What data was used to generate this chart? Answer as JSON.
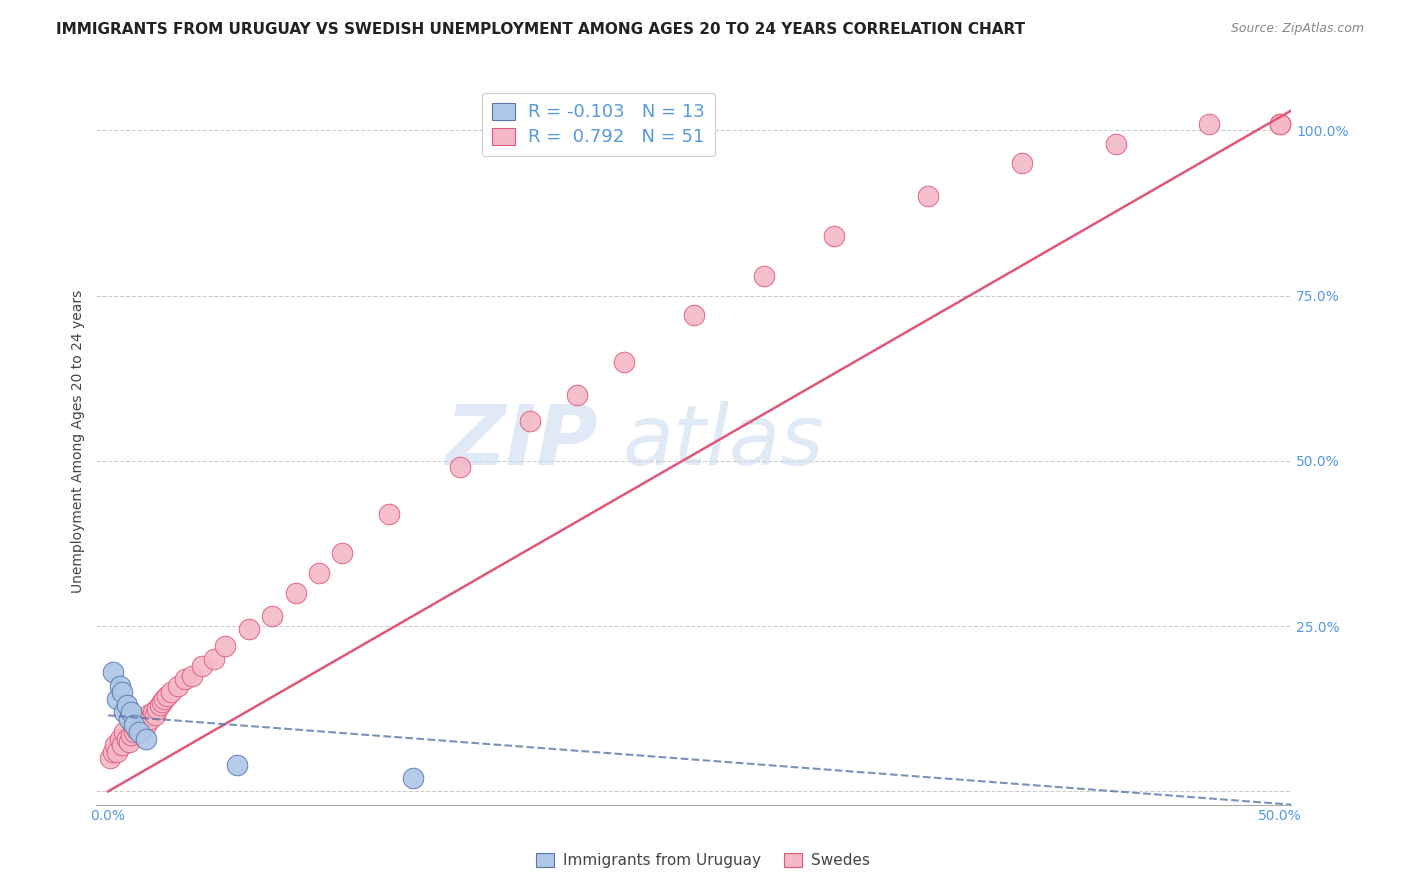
{
  "title": "IMMIGRANTS FROM URUGUAY VS SWEDISH UNEMPLOYMENT AMONG AGES 20 TO 24 YEARS CORRELATION CHART",
  "source": "Source: ZipAtlas.com",
  "ylabel": "Unemployment Among Ages 20 to 24 years",
  "xlim": [
    -0.005,
    0.505
  ],
  "ylim": [
    -0.02,
    1.08
  ],
  "xticks": [
    0.0,
    0.1,
    0.2,
    0.3,
    0.4,
    0.5
  ],
  "xtick_labels": [
    "0.0%",
    "",
    "",
    "",
    "",
    "50.0%"
  ],
  "yticks": [
    0.0,
    0.25,
    0.5,
    0.75,
    1.0
  ],
  "ytick_labels": [
    "",
    "25.0%",
    "50.0%",
    "75.0%",
    "100.0%"
  ],
  "blue_color": "#aec6e8",
  "pink_color": "#f5b8c8",
  "line_pink_color": "#e05878",
  "line_blue_color": "#5577aa",
  "legend_R_blue": "-0.103",
  "legend_N_blue": "13",
  "legend_R_pink": "0.792",
  "legend_N_pink": "51",
  "legend_label_blue": "Immigrants from Uruguay",
  "legend_label_pink": "Swedes",
  "watermark_zip": "ZIP",
  "watermark_atlas": "atlas",
  "title_fontsize": 11,
  "axis_label_fontsize": 10,
  "tick_fontsize": 10,
  "background_color": "#ffffff",
  "grid_color": "#cccccc",
  "blue_x": [
    0.002,
    0.004,
    0.005,
    0.006,
    0.007,
    0.008,
    0.009,
    0.01,
    0.011,
    0.013,
    0.016,
    0.055,
    0.13
  ],
  "blue_y": [
    0.18,
    0.14,
    0.16,
    0.15,
    0.12,
    0.13,
    0.11,
    0.12,
    0.1,
    0.09,
    0.08,
    0.04,
    0.02
  ],
  "pink_x": [
    0.001,
    0.002,
    0.003,
    0.004,
    0.005,
    0.006,
    0.007,
    0.008,
    0.009,
    0.01,
    0.011,
    0.012,
    0.013,
    0.014,
    0.015,
    0.016,
    0.017,
    0.018,
    0.019,
    0.02,
    0.021,
    0.022,
    0.023,
    0.024,
    0.025,
    0.027,
    0.03,
    0.033,
    0.036,
    0.04,
    0.045,
    0.05,
    0.06,
    0.07,
    0.08,
    0.09,
    0.1,
    0.12,
    0.15,
    0.18,
    0.2,
    0.22,
    0.25,
    0.28,
    0.31,
    0.35,
    0.39,
    0.43,
    0.47,
    0.5,
    0.5
  ],
  "pink_y": [
    0.05,
    0.06,
    0.07,
    0.06,
    0.08,
    0.07,
    0.09,
    0.08,
    0.075,
    0.085,
    0.09,
    0.095,
    0.1,
    0.09,
    0.105,
    0.1,
    0.115,
    0.11,
    0.12,
    0.115,
    0.125,
    0.13,
    0.135,
    0.14,
    0.145,
    0.15,
    0.16,
    0.17,
    0.175,
    0.19,
    0.2,
    0.22,
    0.245,
    0.265,
    0.3,
    0.33,
    0.36,
    0.42,
    0.49,
    0.56,
    0.6,
    0.65,
    0.72,
    0.78,
    0.84,
    0.9,
    0.95,
    0.98,
    1.01,
    1.01,
    1.01
  ],
  "pink_line_x0": 0.0,
  "pink_line_y0": 0.0,
  "pink_line_x1": 0.505,
  "pink_line_y1": 1.03,
  "blue_line_x0": 0.0,
  "blue_line_y0": 0.115,
  "blue_line_x1": 0.505,
  "blue_line_y1": -0.02
}
